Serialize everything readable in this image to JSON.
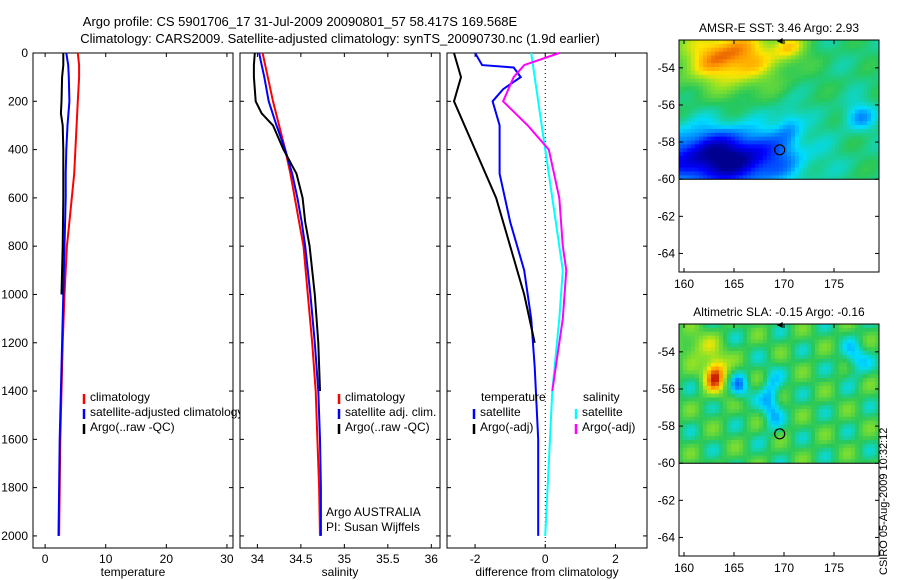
{
  "header": {
    "line1": "Argo profile: CS 5901706_17 31-Jul-2009 20090801_57 58.417S 169.568E",
    "line2": "Climatology: CARS2009. Satellite-adjusted climatology: synTS_20090730.nc (1.9d earlier)"
  },
  "side_stamp": "CSIRO 05-Aug-2009 10:32:12",
  "colors": {
    "climatology": "#ff0000",
    "satellite": "#0000ff",
    "argo": "#000000",
    "salinity_sat": "#00ffff",
    "salinity_argo": "#ff00ff"
  },
  "chart_data": [
    {
      "type": "line",
      "xlabel": "temperature",
      "xlim": [
        -2,
        31
      ],
      "ylim": [
        0,
        2050
      ],
      "y_reversed": true,
      "x_ticks": [
        0,
        10,
        20,
        30
      ],
      "y_ticks": [
        0,
        200,
        400,
        600,
        800,
        1000,
        1200,
        1400,
        1600,
        1800,
        2000
      ],
      "series": [
        {
          "name": "climatology",
          "color": "#ff0000",
          "points": [
            [
              5.4,
              0
            ],
            [
              5.6,
              50
            ],
            [
              5.6,
              100
            ],
            [
              5.4,
              200
            ],
            [
              5.2,
              300
            ],
            [
              5.0,
              400
            ],
            [
              4.8,
              500
            ],
            [
              4.4,
              600
            ],
            [
              4.0,
              700
            ],
            [
              3.6,
              800
            ],
            [
              3.2,
              1000
            ],
            [
              2.9,
              1200
            ],
            [
              2.7,
              1400
            ],
            [
              2.5,
              1600
            ],
            [
              2.4,
              1800
            ],
            [
              2.3,
              2000
            ]
          ]
        },
        {
          "name": "satellite-adjusted climatology",
          "color": "#0000ff",
          "points": [
            [
              3.5,
              0
            ],
            [
              3.8,
              50
            ],
            [
              3.9,
              100
            ],
            [
              4.0,
              200
            ],
            [
              3.7,
              300
            ],
            [
              3.5,
              400
            ],
            [
              3.4,
              500
            ],
            [
              3.4,
              600
            ],
            [
              3.2,
              800
            ],
            [
              3.0,
              1000
            ],
            [
              2.8,
              1200
            ],
            [
              2.6,
              1400
            ],
            [
              2.4,
              1600
            ],
            [
              2.3,
              1800
            ],
            [
              2.2,
              2000
            ]
          ]
        },
        {
          "name": "Argo(..raw -QC)",
          "color": "#000000",
          "points": [
            [
              3.0,
              0
            ],
            [
              3.0,
              50
            ],
            [
              2.8,
              100
            ],
            [
              2.7,
              200
            ],
            [
              2.6,
              250
            ],
            [
              2.9,
              300
            ],
            [
              3.0,
              400
            ],
            [
              3.0,
              500
            ],
            [
              3.0,
              600
            ],
            [
              2.9,
              800
            ],
            [
              2.7,
              1000
            ]
          ]
        }
      ],
      "legend": {
        "placement": "lower-right",
        "entries": [
          "climatology",
          "satellite-adjusted climatology",
          "Argo(..raw -QC)"
        ]
      }
    },
    {
      "type": "line",
      "xlabel": "salinity",
      "xlim": [
        33.8,
        36.1
      ],
      "ylim": [
        0,
        2050
      ],
      "y_reversed": true,
      "x_ticks": [
        34,
        34.5,
        35,
        35.5,
        36
      ],
      "x_tick_labels": [
        "34",
        "34.5",
        "35",
        "35.5",
        "36"
      ],
      "series": [
        {
          "name": "climatology",
          "color": "#ff0000",
          "points": [
            [
              34.06,
              0
            ],
            [
              34.09,
              50
            ],
            [
              34.12,
              100
            ],
            [
              34.18,
              200
            ],
            [
              34.25,
              300
            ],
            [
              34.32,
              400
            ],
            [
              34.38,
              500
            ],
            [
              34.43,
              600
            ],
            [
              34.48,
              700
            ],
            [
              34.53,
              800
            ],
            [
              34.58,
              1000
            ],
            [
              34.63,
              1200
            ],
            [
              34.67,
              1400
            ],
            [
              34.69,
              1600
            ],
            [
              34.71,
              1800
            ],
            [
              34.72,
              2000
            ]
          ]
        },
        {
          "name": "satellite adj. clim.",
          "color": "#0000ff",
          "points": [
            [
              34.02,
              0
            ],
            [
              34.05,
              50
            ],
            [
              34.08,
              100
            ],
            [
              34.13,
              200
            ],
            [
              34.22,
              300
            ],
            [
              34.32,
              400
            ],
            [
              34.4,
              500
            ],
            [
              34.46,
              600
            ],
            [
              34.51,
              700
            ],
            [
              34.55,
              800
            ],
            [
              34.61,
              1000
            ],
            [
              34.66,
              1200
            ],
            [
              34.7,
              1400
            ],
            [
              34.72,
              1600
            ],
            [
              34.73,
              1800
            ],
            [
              34.73,
              2000
            ]
          ]
        },
        {
          "name": "Argo(..raw -QC)",
          "color": "#000000",
          "points": [
            [
              33.97,
              0
            ],
            [
              33.96,
              50
            ],
            [
              33.96,
              100
            ],
            [
              33.98,
              200
            ],
            [
              34.05,
              250
            ],
            [
              34.18,
              300
            ],
            [
              34.3,
              400
            ],
            [
              34.45,
              500
            ],
            [
              34.52,
              600
            ],
            [
              34.55,
              700
            ],
            [
              34.6,
              800
            ],
            [
              34.66,
              1000
            ],
            [
              34.7,
              1200
            ],
            [
              34.72,
              1400
            ]
          ]
        }
      ],
      "legend": {
        "placement": "lower-right",
        "entries": [
          "climatology",
          "satellite adj. clim.",
          "Argo(..raw -QC)"
        ]
      },
      "annotations": [
        "Argo AUSTRALIA",
        "PI: Susan Wijffels"
      ]
    },
    {
      "type": "line",
      "xlabel": "difference from climatology",
      "xlim": [
        -2.8,
        2.9
      ],
      "ylim": [
        0,
        2050
      ],
      "y_reversed": true,
      "x_ticks": [
        -2,
        0,
        2
      ],
      "reference_line_x": 0,
      "series": [
        {
          "name": "temperature satellite",
          "color": "#0000ff",
          "points": [
            [
              -2.0,
              0
            ],
            [
              -1.8,
              50
            ],
            [
              -0.9,
              60
            ],
            [
              -0.7,
              100
            ],
            [
              -1.2,
              150
            ],
            [
              -1.5,
              200
            ],
            [
              -1.3,
              300
            ],
            [
              -1.3,
              500
            ],
            [
              -1.0,
              700
            ],
            [
              -0.6,
              900
            ],
            [
              -0.4,
              1100
            ],
            [
              -0.3,
              1300
            ],
            [
              -0.2,
              1600
            ],
            [
              -0.2,
              2000
            ]
          ]
        },
        {
          "name": "temperature Argo(-adj)",
          "color": "#000000",
          "points": [
            [
              -2.6,
              0
            ],
            [
              -2.5,
              50
            ],
            [
              -2.4,
              100
            ],
            [
              -2.6,
              200
            ],
            [
              -2.3,
              300
            ],
            [
              -2.0,
              400
            ],
            [
              -1.4,
              600
            ],
            [
              -1.0,
              800
            ],
            [
              -0.6,
              1000
            ],
            [
              -0.3,
              1200
            ]
          ]
        },
        {
          "name": "salinity satellite",
          "color": "#00ffff",
          "points": [
            [
              -0.4,
              0
            ],
            [
              -0.3,
              100
            ],
            [
              -0.1,
              300
            ],
            [
              0.1,
              500
            ],
            [
              0.3,
              700
            ],
            [
              0.5,
              900
            ],
            [
              0.4,
              1100
            ],
            [
              0.2,
              1400
            ],
            [
              0.1,
              1700
            ],
            [
              0.0,
              2000
            ]
          ]
        },
        {
          "name": "salinity Argo(-adj)",
          "color": "#ff00ff",
          "points": [
            [
              0.4,
              0
            ],
            [
              -0.6,
              50
            ],
            [
              -0.9,
              100
            ],
            [
              -1.2,
              200
            ],
            [
              -0.5,
              300
            ],
            [
              0.1,
              400
            ],
            [
              0.4,
              600
            ],
            [
              0.5,
              800
            ],
            [
              0.6,
              900
            ],
            [
              0.5,
              1100
            ],
            [
              0.3,
              1300
            ],
            [
              0.2,
              1400
            ]
          ]
        }
      ],
      "legend": {
        "placement": "lower-right",
        "headers": [
          "temperature",
          "salinity"
        ],
        "entries": [
          "satellite",
          "Argo(-adj)",
          "satellite",
          "Argo(-adj)"
        ]
      }
    },
    {
      "type": "heatmap",
      "title": "AMSR-E SST: 3.46 Argo: 2.93",
      "x_ticks": [
        160,
        165,
        170,
        175
      ],
      "y_ticks": [
        -54,
        -56,
        -58,
        -60,
        -62,
        -64
      ],
      "xlim": [
        159.5,
        179.5
      ],
      "ylim": [
        -65,
        -52.5
      ],
      "data_ylim": [
        -60,
        -52.5
      ],
      "marker": [
        169.568,
        -58.417
      ]
    },
    {
      "type": "heatmap",
      "title": "Altimetric SLA: -0.15 Argo: -0.16",
      "x_ticks": [
        160,
        165,
        170,
        175
      ],
      "y_ticks": [
        -54,
        -56,
        -58,
        -60,
        -62,
        -64
      ],
      "xlim": [
        159.5,
        179.5
      ],
      "ylim": [
        -65,
        -52.5
      ],
      "data_ylim": [
        -60,
        -52.5
      ],
      "marker": [
        169.568,
        -58.417
      ]
    }
  ]
}
